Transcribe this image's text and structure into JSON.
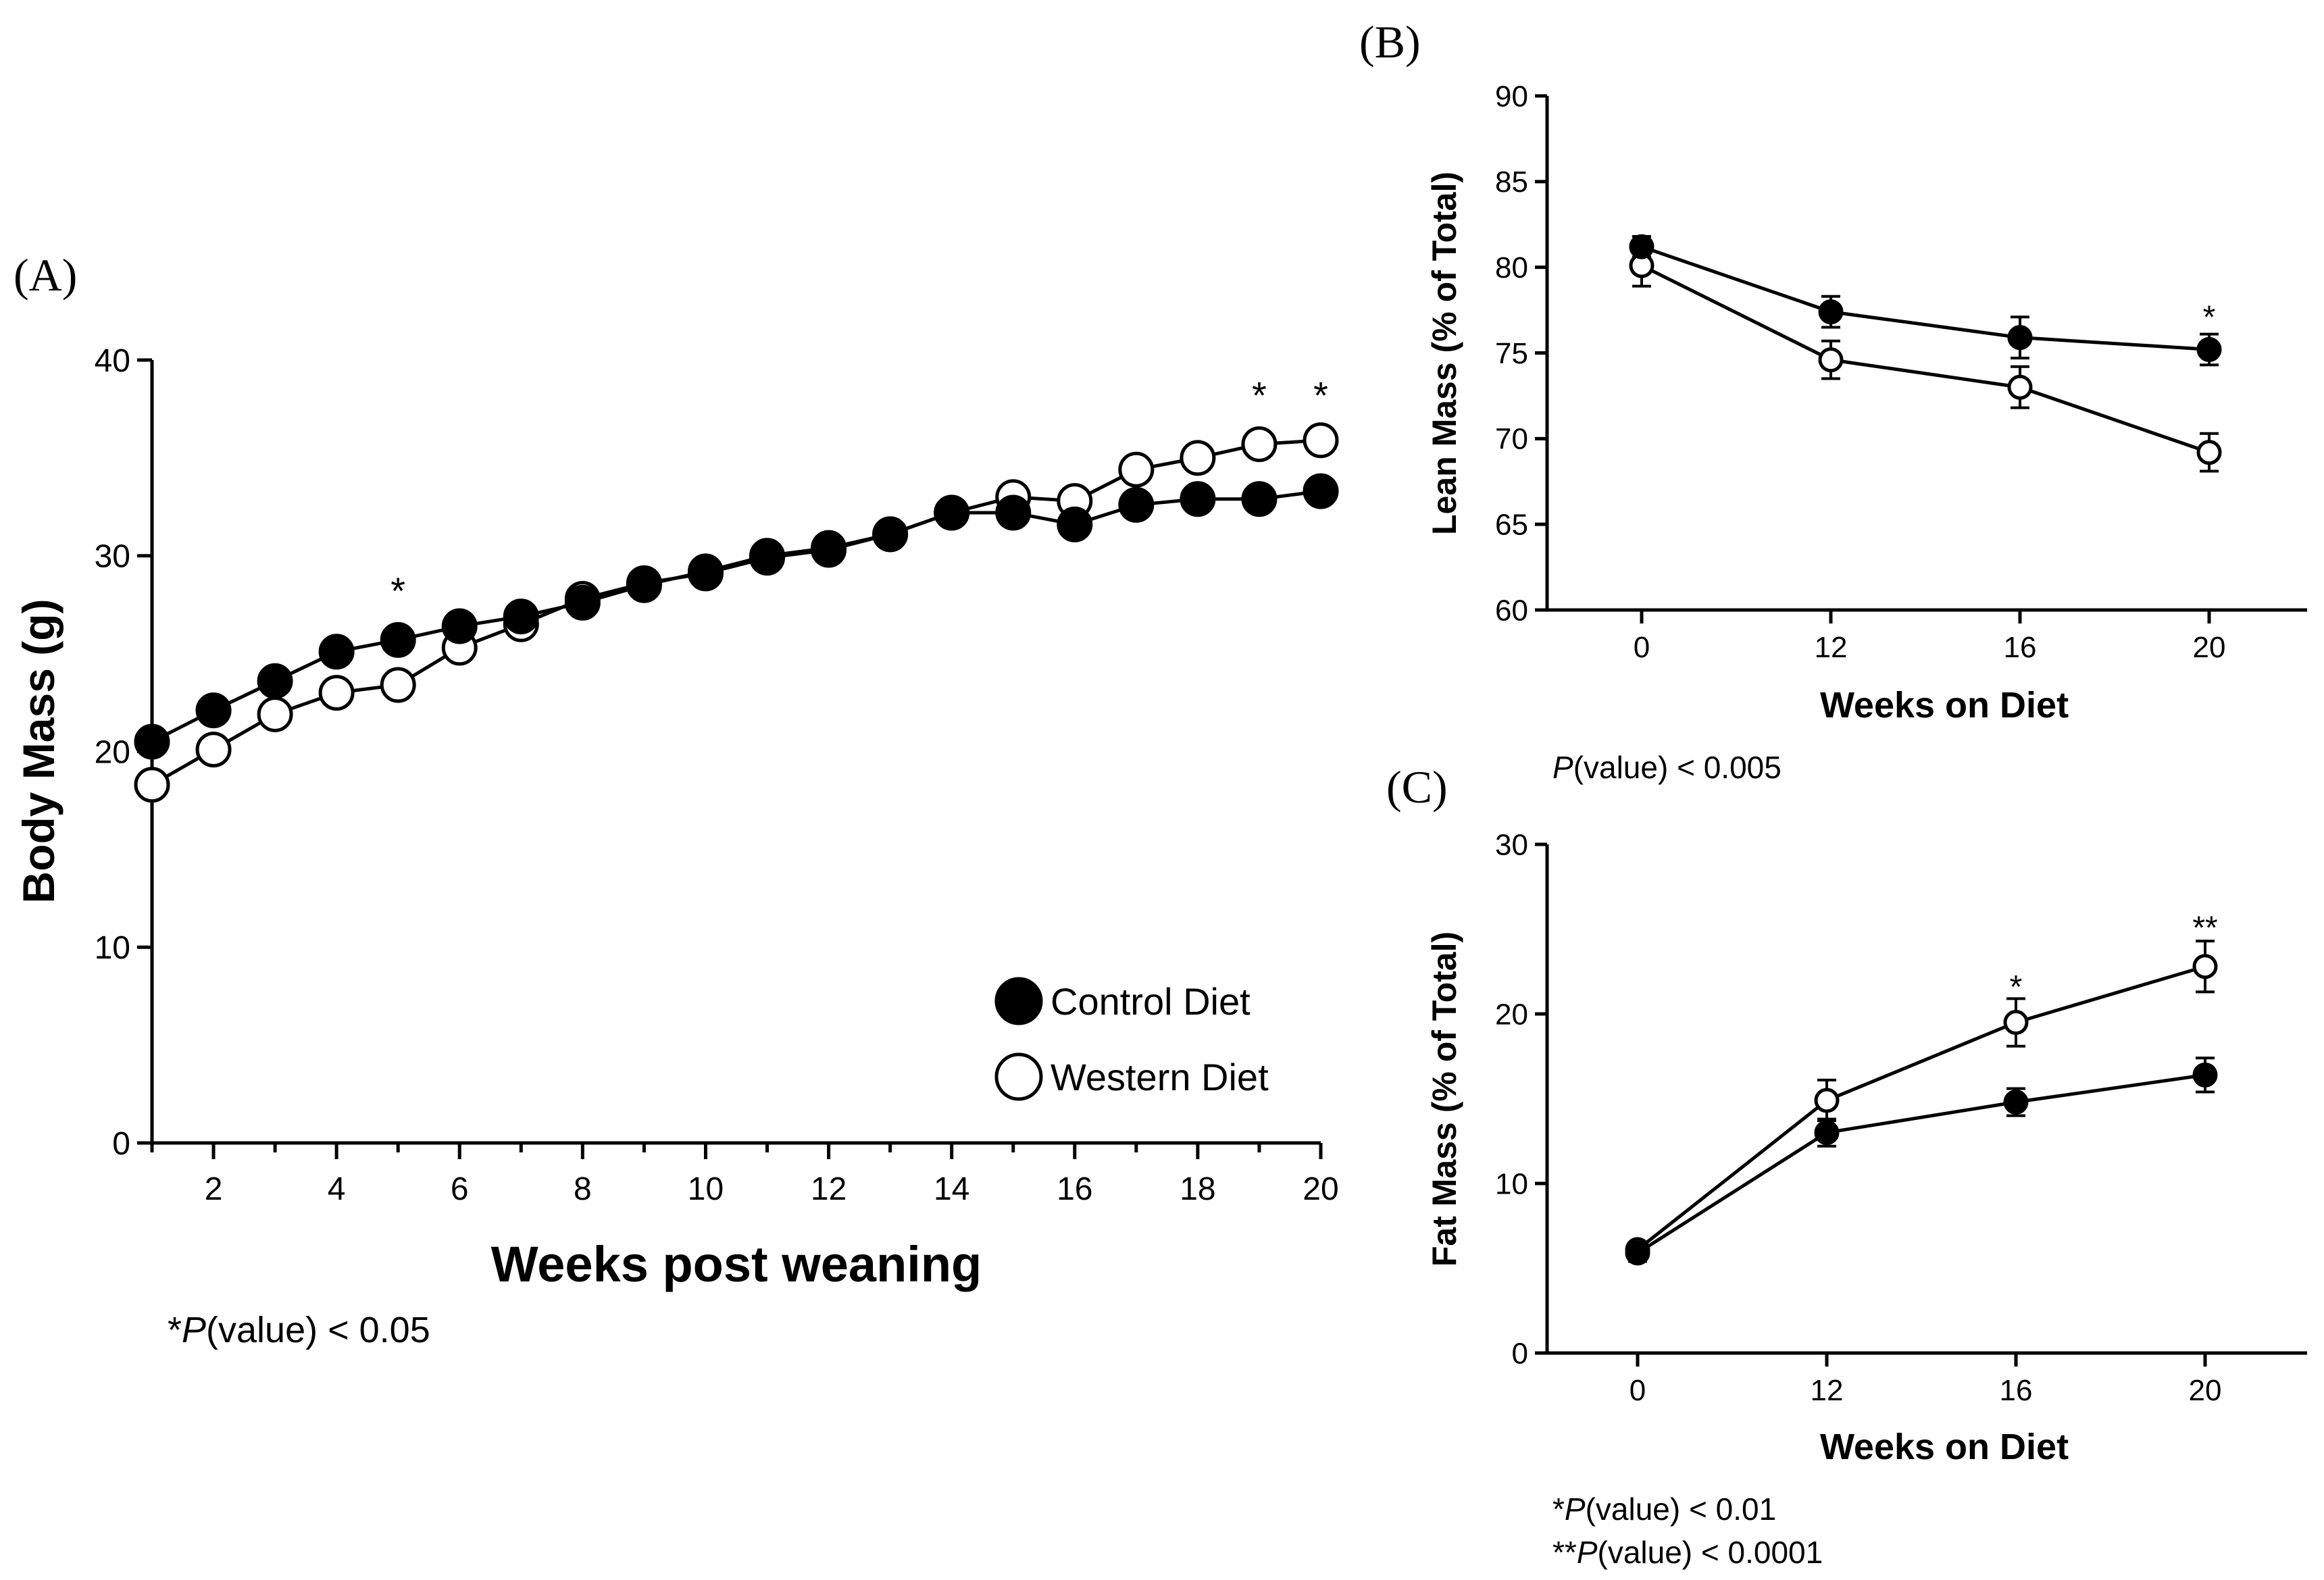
{
  "chart_data": [
    {
      "panel": "(A)",
      "type": "line",
      "ylabel": "Body Mass (g)",
      "xlabel": "Weeks post weaning",
      "xlim": [
        1,
        20
      ],
      "ylim": [
        0,
        40
      ],
      "xticks": [
        "2",
        "4",
        "6",
        "8",
        "10",
        "12",
        "14",
        "16",
        "18",
        "20"
      ],
      "yticks": [
        "0",
        "10",
        "20",
        "30",
        "40"
      ],
      "x": [
        1,
        2,
        3,
        4,
        5,
        6,
        7,
        8,
        9,
        10,
        11,
        12,
        13,
        14,
        15,
        16,
        17,
        18,
        19,
        20
      ],
      "series": [
        {
          "name": "Control Diet",
          "marker": "filled-circle",
          "values": [
            20.5,
            22.1,
            23.6,
            25.1,
            25.7,
            26.4,
            26.9,
            27.6,
            28.5,
            29.2,
            30.0,
            30.4,
            31.1,
            32.2,
            32.2,
            31.6,
            32.6,
            32.9,
            32.9,
            33.3
          ],
          "errors": [
            0,
            0,
            0,
            0,
            0,
            0,
            0,
            0,
            0,
            0,
            0,
            0,
            0,
            0.7,
            0,
            0,
            0.7,
            0,
            0,
            0.7
          ]
        },
        {
          "name": "Western Diet",
          "marker": "open-circle",
          "values": [
            18.3,
            20.1,
            21.9,
            23.0,
            23.4,
            25.3,
            26.5,
            27.8,
            28.6,
            29.1,
            29.9,
            30.3,
            31.1,
            32.2,
            33.0,
            32.8,
            34.4,
            35.0,
            35.7,
            35.9
          ],
          "errors": [
            0,
            0,
            0,
            0,
            0,
            0,
            0,
            0,
            0,
            0,
            0,
            0,
            0,
            0,
            0,
            0,
            0,
            0,
            0,
            0
          ]
        }
      ],
      "annotations": [
        {
          "x": 5,
          "y": 28.6,
          "text": "*"
        },
        {
          "x": 19,
          "y": 38.6,
          "text": "*"
        },
        {
          "x": 20,
          "y": 38.6,
          "text": "*"
        }
      ],
      "legend": {
        "position": "bottom-right",
        "entries": [
          "Control Diet",
          "Western Diet"
        ]
      },
      "footnote_prefix": "*",
      "footnote_italic": "P",
      "footnote_suffix": "(value) < 0.05"
    },
    {
      "panel": "(B)",
      "type": "line",
      "ylabel": "Lean Mass (% of Total)",
      "xlabel": "Weeks on Diet",
      "categories": [
        "0",
        "12",
        "16",
        "20"
      ],
      "ylim": [
        60,
        90
      ],
      "yticks": [
        "60",
        "65",
        "70",
        "75",
        "80",
        "85",
        "90"
      ],
      "series": [
        {
          "name": "Control Diet",
          "marker": "filled-circle",
          "values": [
            81.2,
            77.4,
            75.9,
            75.2
          ],
          "errors": [
            0.6,
            0.9,
            1.2,
            0.9
          ]
        },
        {
          "name": "Western Diet",
          "marker": "open-circle",
          "values": [
            80.1,
            74.6,
            73.0,
            69.2
          ],
          "errors": [
            1.2,
            1.1,
            1.2,
            1.1
          ]
        }
      ],
      "annotations": [
        {
          "index": 3,
          "y": 77.5,
          "text": "*"
        }
      ],
      "footnote_prefix": "",
      "footnote_italic": "P",
      "footnote_suffix": "(value) < 0.005"
    },
    {
      "panel": "(C)",
      "type": "line",
      "ylabel": "Fat Mass (% of Total)",
      "xlabel": "Weeks on Diet",
      "categories": [
        "0",
        "12",
        "16",
        "20"
      ],
      "ylim": [
        0,
        30
      ],
      "yticks": [
        "0",
        "10",
        "20",
        "30"
      ],
      "series": [
        {
          "name": "Control Diet",
          "marker": "filled-circle",
          "values": [
            5.9,
            13.0,
            14.8,
            16.4
          ],
          "errors": [
            0.5,
            0.8,
            0.8,
            1.0
          ]
        },
        {
          "name": "Western Diet",
          "marker": "open-circle",
          "values": [
            6.1,
            14.9,
            19.5,
            22.8
          ],
          "errors": [
            0.4,
            1.2,
            1.4,
            1.5
          ]
        }
      ],
      "annotations": [
        {
          "index": 2,
          "y": 22.0,
          "text": "*"
        },
        {
          "index": 3,
          "y": 25.5,
          "text": "**"
        }
      ],
      "footnotes": [
        {
          "prefix": "*",
          "italic": "P",
          "suffix": "(value) < 0.01"
        },
        {
          "prefix": "**",
          "italic": "P",
          "suffix": "(value) < 0.0001"
        }
      ]
    }
  ]
}
